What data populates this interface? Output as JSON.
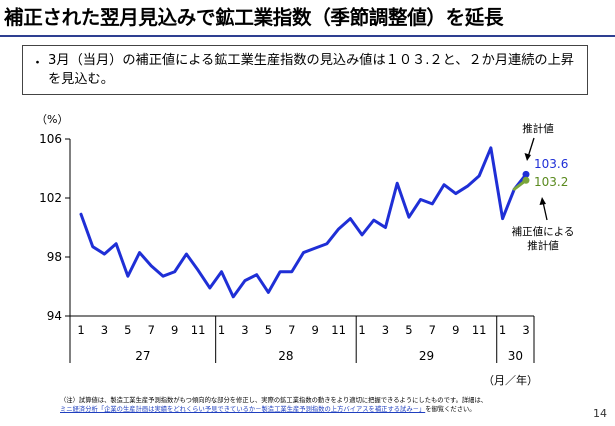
{
  "header": {
    "title": "補正された翌月見込みで鉱工業指数（季節調整値）を延長"
  },
  "summary": {
    "bullet": "・",
    "text": "3月（当月）の補正値による鉱工業生産指数の見込み値は１０３.２と、２か月連続の上昇を見込む。"
  },
  "chart_data": {
    "type": "line",
    "ylabel": "（%）",
    "xlabel": "（月／年）",
    "ylim": [
      94,
      106
    ],
    "yticks": [
      94,
      98,
      102,
      106
    ],
    "grid": false,
    "x": [
      "1",
      "2",
      "3",
      "4",
      "5",
      "6",
      "7",
      "8",
      "9",
      "10",
      "11",
      "12",
      "1",
      "2",
      "3",
      "4",
      "5",
      "6",
      "7",
      "8",
      "9",
      "10",
      "11",
      "12",
      "1",
      "2",
      "3",
      "4",
      "5",
      "6",
      "7",
      "8",
      "9",
      "10",
      "11",
      "12",
      "1",
      "2",
      "3"
    ],
    "month_tick_labels": [
      "1",
      "3",
      "5",
      "7",
      "9",
      "11",
      "1",
      "3",
      "5",
      "7",
      "9",
      "11",
      "1",
      "3",
      "5",
      "7",
      "9",
      "11",
      "1",
      "3"
    ],
    "year_labels": [
      "27",
      "28",
      "29",
      "30"
    ],
    "series": [
      {
        "color": "#1f2fd6",
        "values": [
          100.9,
          98.7,
          98.2,
          98.9,
          96.7,
          98.3,
          97.4,
          96.7,
          97.0,
          98.2,
          97.1,
          95.9,
          97.0,
          95.3,
          96.4,
          96.8,
          95.6,
          97.0,
          97.0,
          98.3,
          98.6,
          98.9,
          99.9,
          100.6,
          99.5,
          100.5,
          100.0,
          103.0,
          100.7,
          101.9,
          101.6,
          102.9,
          102.3,
          102.8,
          103.5,
          105.4,
          100.6,
          102.6,
          103.6
        ]
      },
      {
        "color": "#7aa63a",
        "values": [
          null,
          null,
          null,
          null,
          null,
          null,
          null,
          null,
          null,
          null,
          null,
          null,
          null,
          null,
          null,
          null,
          null,
          null,
          null,
          null,
          null,
          null,
          null,
          null,
          null,
          null,
          null,
          null,
          null,
          null,
          null,
          null,
          null,
          null,
          null,
          null,
          null,
          102.6,
          103.2
        ]
      }
    ],
    "annotations": [
      {
        "text": "推計値",
        "value_label": "103.6",
        "value_color": "#1f2fd6"
      },
      {
        "text": "補正値による\n推計値",
        "value_label": "103.2",
        "value_color": "#5a8a1e"
      }
    ]
  },
  "footnote": {
    "line1": "（注）試算値は、製造工業生産予測指数がもつ傾向的な部分を修正し、実際の鉱工業指数の動きをより適切に把握できるようにしたものです。詳細は、",
    "link": "ミニ経済分析「企業の生産計画は実績をどれくらい予見できているか－製造工業生産予測指数の上方バイアスを補正する試み－」",
    "line2_suffix": "を御覧ください。"
  },
  "page_number": "14"
}
